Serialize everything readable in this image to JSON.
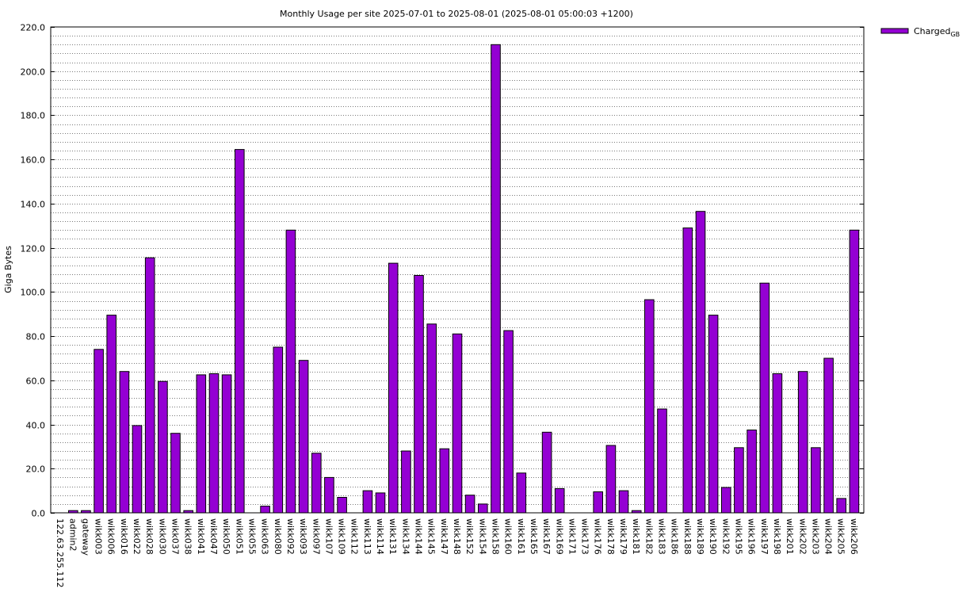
{
  "chart_data": {
    "type": "bar",
    "title": "Monthly Usage per site 2025-07-01 to 2025-08-01 (2025-08-01 05:00:03 +1200)",
    "ylabel": "Giga Bytes",
    "xlabel": "",
    "ylim": [
      0,
      220
    ],
    "y_ticks": [
      "0.0",
      "20.0",
      "40.0",
      "60.0",
      "80.0",
      "100.0",
      "120.0",
      "140.0",
      "160.0",
      "180.0",
      "200.0",
      "220.0"
    ],
    "grid": true,
    "legend_position": "top-right",
    "legend": {
      "base": "Charged",
      "subscript": "GB"
    },
    "bar_color": "#9400d3",
    "categories": [
      "122.63.255.112",
      "admin2",
      "gateway",
      "wikk003",
      "wikk006",
      "wikk016",
      "wikk022",
      "wikk028",
      "wikk030",
      "wikk037",
      "wikk038",
      "wikk041",
      "wikk047",
      "wikk050",
      "wikk051",
      "wikk055",
      "wikk063",
      "wikk080",
      "wikk092",
      "wikk093",
      "wikk097",
      "wikk107",
      "wikk109",
      "wikk112",
      "wikk113",
      "wikk114",
      "wikk131",
      "wikk134",
      "wikk144",
      "wikk145",
      "wikk147",
      "wikk148",
      "wikk152",
      "wikk154",
      "wikk158",
      "wikk160",
      "wikk161",
      "wikk165",
      "wikk167",
      "wikk169",
      "wikk171",
      "wikk173",
      "wikk176",
      "wikk178",
      "wikk179",
      "wikk181",
      "wikk182",
      "wikk183",
      "wikk186",
      "wikk188",
      "wikk189",
      "wikk190",
      "wikk192",
      "wikk195",
      "wikk196",
      "wikk197",
      "wikk198",
      "wikk201",
      "wikk202",
      "wikk203",
      "wikk204",
      "wikk205",
      "wikk206"
    ],
    "series": [
      {
        "name": "Charged GB",
        "values": [
          0,
          1,
          1,
          74,
          89.5,
          64,
          39.5,
          115.5,
          59.5,
          36,
          1,
          62.5,
          63,
          62.5,
          164.5,
          0,
          3,
          75,
          128,
          69,
          27,
          16,
          7,
          0,
          10,
          9,
          113,
          28,
          107.5,
          85.5,
          29,
          81,
          8,
          4,
          212,
          82.5,
          18,
          0,
          36.5,
          11,
          0,
          0,
          9.5,
          30.5,
          10,
          1,
          96.5,
          47,
          0,
          129,
          136.5,
          89.5,
          11.5,
          29.5,
          37.5,
          104,
          63,
          0,
          64,
          29.5,
          70,
          6.5,
          128
        ]
      }
    ]
  }
}
